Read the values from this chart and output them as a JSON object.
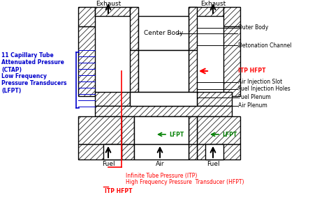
{
  "bg_color": "#ffffff",
  "red_color": "#ff0000",
  "blue_color": "#0000cc",
  "green_color": "#008000",
  "labels": {
    "exhaust_left": "Exhaust",
    "exhaust_right": "Exhaust",
    "center_body": "Center Body",
    "outer_body": "Outer Body",
    "detonation": "Detonation Channel",
    "itp_hfpt_right": "ITP HFPT",
    "air_injection": "Air Injection Slot",
    "fuel_injection": "Fuel Injection Holes",
    "fuel_plenum": "Fuel Plenum",
    "air_plenum": "Air Plenum",
    "fuel_left": "Fuel",
    "air_center": "Air",
    "fuel_right": "Fuel",
    "lfpt_left": "LFPT",
    "lfpt_right": "LFPT",
    "itp_line1": "Infinite Tube Pressure (ITP)",
    "itp_line2": "High Frequency Pressure  Transducer (HFPT)",
    "itp_hfpt_bottom": "ITP HFPT",
    "ctap_line1": "11 Capillary Tube",
    "ctap_line2": "Attenuated Pressure",
    "ctap_line3": "(CTAP)",
    "ctap_line4": "Low Frequency",
    "ctap_line5": "Pressure Transducers",
    "ctap_line6": "(LFPT)"
  }
}
